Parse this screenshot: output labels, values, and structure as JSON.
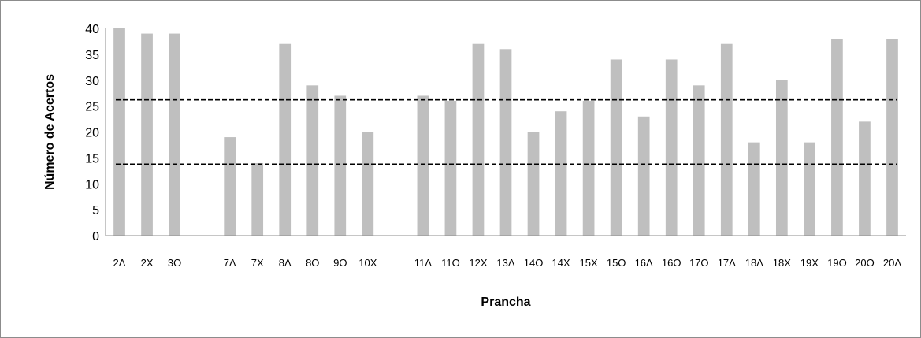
{
  "chart_data": {
    "type": "bar",
    "xlabel": "Prancha",
    "ylabel": "Número de Acertos",
    "ylim": [
      0,
      40
    ],
    "yticks": [
      0,
      5,
      10,
      15,
      20,
      25,
      30,
      35,
      40
    ],
    "grid": false,
    "legend": "none",
    "bar_color": "#bfbfbf",
    "reference_lines": [
      26.2,
      13.8
    ],
    "reference_line_color": "#000000",
    "categories": [
      "2Δ",
      "2X",
      "3O",
      "",
      "7Δ",
      "7X",
      "8Δ",
      "8O",
      "9O",
      "10X",
      "",
      "11Δ",
      "11O",
      "12X",
      "13Δ",
      "14O",
      "14X",
      "15X",
      "15O",
      "16Δ",
      "16O",
      "17O",
      "17Δ",
      "18Δ",
      "18X",
      "19X",
      "19O",
      "20O",
      "20Δ"
    ],
    "values": [
      40,
      39,
      39,
      null,
      19,
      14,
      37,
      29,
      27,
      20,
      null,
      27,
      26,
      37,
      36,
      20,
      24,
      26,
      34,
      23,
      34,
      29,
      37,
      18,
      30,
      18,
      38,
      22,
      38
    ]
  }
}
